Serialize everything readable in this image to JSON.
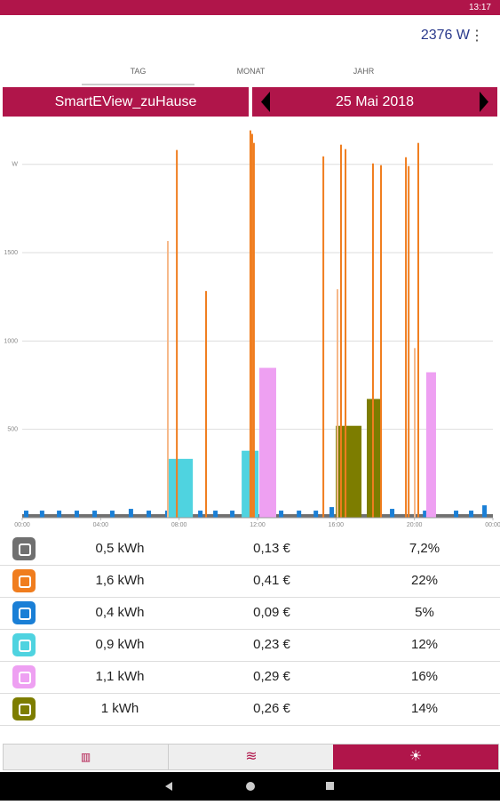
{
  "status_bar": {
    "time": "13:17"
  },
  "header": {
    "power": "2376 W"
  },
  "tabs": [
    "TAG",
    "MONAT",
    "JAHR"
  ],
  "selector": {
    "location": "SmartEView_zuHause",
    "date": "25 Mai 2018"
  },
  "chart_data": {
    "type": "bar",
    "xlim": [
      0,
      24
    ],
    "xticks": [
      {
        "value": 0,
        "label": "00:00"
      },
      {
        "value": 4,
        "label": "04:00"
      },
      {
        "value": 8,
        "label": "08:00"
      },
      {
        "value": 12,
        "label": "12:00"
      },
      {
        "value": 16,
        "label": "16:00"
      },
      {
        "value": 20,
        "label": "20:00"
      },
      {
        "value": 24,
        "label": "00:00"
      }
    ],
    "ylim": [
      0,
      2200
    ],
    "yticks": [
      {
        "value": 500,
        "label": "500"
      },
      {
        "value": 1000,
        "label": "1000"
      },
      {
        "value": 1500,
        "label": "1500"
      },
      {
        "value": 2000,
        "label": "W"
      }
    ],
    "grid": true,
    "series": [
      {
        "color": "#707070",
        "x": [
          0
        ],
        "x_end": [
          24
        ],
        "values": [
          20
        ]
      },
      {
        "color": "#1a7fd6",
        "x": [
          0.09,
          0.9,
          1.77,
          2.67,
          3.58,
          4.48,
          5.43,
          6.34,
          7.29,
          8.97,
          9.74,
          10.6,
          13.09,
          14.0,
          14.86,
          15.67,
          16.71,
          17.71,
          18.75,
          20.43,
          22.01,
          22.78,
          23.46
        ],
        "values": [
          40,
          40,
          40,
          40,
          40,
          40,
          50,
          40,
          40,
          40,
          40,
          40,
          40,
          40,
          40,
          60,
          40,
          40,
          50,
          40,
          40,
          40,
          70
        ]
      },
      {
        "color": "#4fd3e0",
        "x": [
          7.43,
          11.19
        ],
        "x_end": [
          8.7,
          12.05
        ],
        "values": [
          333,
          379
        ]
      },
      {
        "color": "#eea0f2",
        "x": [
          12.09,
          20.6
        ],
        "x_end": [
          12.95,
          21.1
        ],
        "values": [
          848,
          823
        ]
      },
      {
        "color": "#7d7d00",
        "x": [
          15.99,
          17.57
        ],
        "x_end": [
          17.3,
          18.3
        ],
        "values": [
          520,
          672
        ]
      },
      {
        "color": "#f07d1e",
        "x": [
          7.84,
          9.33,
          11.59,
          11.68,
          11.77,
          15.31,
          16.21,
          16.44,
          17.84,
          18.25,
          19.52,
          19.66,
          20.15
        ],
        "values": [
          2081,
          1283,
          2192,
          2172,
          2121,
          2045,
          2111,
          2086,
          2005,
          1995,
          2040,
          1990,
          2121
        ]
      },
      {
        "color": "#f6b88a",
        "x": [
          7.38,
          16.03,
          19.97
        ],
        "values": [
          1566,
          1293,
          960
        ]
      }
    ]
  },
  "table": {
    "rows": [
      {
        "color": "#707070",
        "energy": "0,5 kWh",
        "cost": "0,13 €",
        "share": "7,2%"
      },
      {
        "color": "#f07d1e",
        "energy": "1,6 kWh",
        "cost": "0,41 €",
        "share": "22%"
      },
      {
        "color": "#1a7fd6",
        "energy": "0,4 kWh",
        "cost": "0,09 €",
        "share": "5%"
      },
      {
        "color": "#4fd3e0",
        "energy": "0,9 kWh",
        "cost": "0,23 €",
        "share": "12%"
      },
      {
        "color": "#eea0f2",
        "energy": "1,1 kWh",
        "cost": "0,29 €",
        "share": "16%"
      },
      {
        "color": "#7d7d00",
        "energy": "1 kWh",
        "cost": "0,26 €",
        "share": "14%"
      }
    ]
  }
}
